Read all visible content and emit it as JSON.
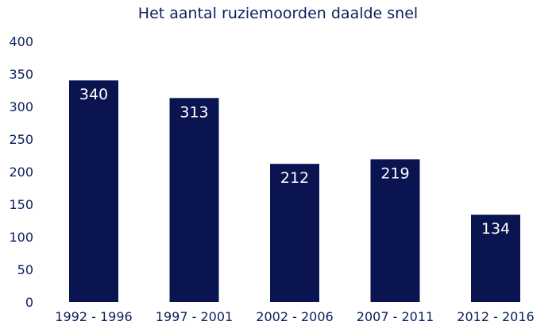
{
  "chart_data": {
    "type": "bar",
    "title": "Het aantal ruziemoorden daalde snel",
    "categories": [
      "1992 - 1996",
      "1997 - 2001",
      "2002 - 2006",
      "2007 - 2011",
      "2012 - 2016"
    ],
    "values": [
      340,
      313,
      212,
      219,
      134
    ],
    "data_labels": [
      "340",
      "313",
      "212",
      "219",
      "134"
    ],
    "yticks": [
      "0",
      "50",
      "100",
      "150",
      "200",
      "250",
      "300",
      "350",
      "400"
    ],
    "ylim": [
      0,
      400
    ],
    "xlabel": "",
    "ylabel": "",
    "grid": false,
    "legend": "none",
    "bar_color": "#0a1450",
    "text_color": "#0b1f5c",
    "label_color": "#ffffff"
  }
}
